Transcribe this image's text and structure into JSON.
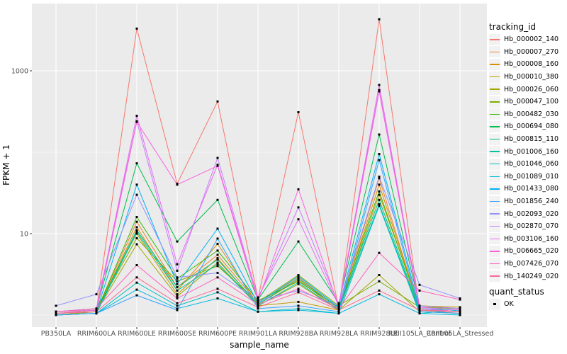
{
  "chart": {
    "x_axis_title": "sample_name",
    "y_axis_title": "FPKM + 1"
  },
  "legend": {
    "tracking_title": "tracking_id",
    "quant_title": "quant_status",
    "quant_ok_label": "OK"
  },
  "chart_data": {
    "type": "line",
    "title": "",
    "xlabel": "sample_name",
    "ylabel": "FPKM + 1",
    "y_scale": "log10",
    "legend_position": "right",
    "grid": true,
    "panel_bg": "#EBEBEB",
    "grid_color": "#FFFFFF",
    "point_color": "#000000",
    "axis_text_color": "#4D4D4D",
    "tick_color": "#333333",
    "ylim": [
      0.7,
      6500
    ],
    "y_ticks": [
      {
        "label": "10",
        "value": 10
      },
      {
        "label": "1000",
        "value": 1000
      }
    ],
    "y_minor": [
      1,
      100
    ],
    "categories": [
      "PB350LA",
      "RRIM600LA",
      "RRIM600LE",
      "RRIM600SE",
      "RRIM600PE",
      "RRIM901LA",
      "RRIM928BA",
      "RRIM928LA",
      "RRIM928LE",
      "RRII105LA_Control",
      "RRII105LA_Stressed"
    ],
    "quant_status": "OK",
    "series": [
      {
        "name": "Hb_000002_140",
        "color": "#F8766D",
        "values": [
          1.05,
          1.15,
          3300,
          41,
          420,
          1.6,
          310,
          1.2,
          4300,
          1.15,
          1.05
        ]
      },
      {
        "name": "Hb_000007_270",
        "color": "#EA8331",
        "values": [
          1.05,
          1.1,
          14,
          2.2,
          5.5,
          1.4,
          2.9,
          1.2,
          48,
          1.15,
          1.1
        ]
      },
      {
        "name": "Hb_000008_160",
        "color": "#D89000",
        "values": [
          1.0,
          1.1,
          12,
          2.0,
          7.5,
          1.35,
          2.7,
          1.15,
          40,
          1.2,
          1.1
        ]
      },
      {
        "name": "Hb_000010_380",
        "color": "#C09B00",
        "values": [
          1.1,
          1.2,
          10,
          1.8,
          5.0,
          1.3,
          1.45,
          1.15,
          30,
          1.3,
          1.25
        ]
      },
      {
        "name": "Hb_000026_060",
        "color": "#A3A500",
        "values": [
          1.0,
          1.1,
          7.4,
          1.7,
          4.4,
          1.3,
          2.4,
          1.15,
          3.1,
          1.1,
          1.05
        ]
      },
      {
        "name": "Hb_000047_100",
        "color": "#7CAE00",
        "values": [
          1.1,
          1.15,
          8.8,
          2.6,
          4.0,
          1.45,
          3.1,
          1.3,
          2.6,
          1.25,
          1.2
        ]
      },
      {
        "name": "Hb_000482_030",
        "color": "#39B600",
        "values": [
          1.05,
          1.1,
          16,
          2.8,
          6.2,
          1.5,
          2.6,
          1.25,
          33,
          1.2,
          1.1
        ]
      },
      {
        "name": "Hb_000694_080",
        "color": "#00BB4E",
        "values": [
          1.1,
          1.2,
          73,
          8,
          26,
          1.55,
          8,
          1.4,
          165,
          1.3,
          1.2
        ]
      },
      {
        "name": "Hb_000815_110",
        "color": "#00BF7D",
        "values": [
          1.05,
          1.1,
          11,
          2.2,
          4.8,
          1.35,
          2.8,
          1.2,
          26,
          1.15,
          1.1
        ]
      },
      {
        "name": "Hb_001006_160",
        "color": "#00C1A3",
        "values": [
          1.0,
          1.05,
          10.5,
          2.0,
          4.2,
          1.3,
          2.5,
          1.15,
          23,
          1.1,
          1.05
        ]
      },
      {
        "name": "Hb_001046_060",
        "color": "#00C0C4",
        "values": [
          1.0,
          1.05,
          2.5,
          1.3,
          1.9,
          1.1,
          1.2,
          1.05,
          22,
          1.05,
          1.15
        ]
      },
      {
        "name": "Hb_001089_010",
        "color": "#00BAE0",
        "values": [
          1.0,
          1.05,
          2.05,
          1.2,
          1.6,
          1.1,
          1.15,
          1.05,
          1.8,
          1.05,
          1.0
        ]
      },
      {
        "name": "Hb_001433_080",
        "color": "#00B0F6",
        "values": [
          1.05,
          1.1,
          40,
          2.4,
          11.5,
          1.4,
          3.0,
          1.25,
          95,
          1.2,
          1.15
        ]
      },
      {
        "name": "Hb_001856_240",
        "color": "#35A2FF",
        "values": [
          1.0,
          1.05,
          1.75,
          1.15,
          8.7,
          1.2,
          1.3,
          1.1,
          80,
          1.1,
          1.05
        ]
      },
      {
        "name": "Hb_002093_020",
        "color": "#9590FF",
        "values": [
          1.3,
          1.8,
          30,
          2.9,
          3.3,
          1.5,
          2.0,
          1.3,
          50,
          2.35,
          1.6
        ]
      },
      {
        "name": "Hb_002870_070",
        "color": "#C77CFF",
        "values": [
          1.1,
          1.2,
          240,
          3.5,
          85,
          1.6,
          21,
          1.35,
          580,
          1.3,
          1.2
        ]
      },
      {
        "name": "Hb_003106_160",
        "color": "#E76BF3",
        "values": [
          1.1,
          1.15,
          280,
          4.2,
          70,
          1.65,
          15,
          1.3,
          670,
          1.25,
          1.15
        ]
      },
      {
        "name": "Hb_006665_020",
        "color": "#FA62DB",
        "values": [
          1.05,
          1.1,
          235,
          40,
          68,
          1.5,
          35,
          1.25,
          560,
          1.2,
          1.1
        ]
      },
      {
        "name": "Hb_007426_070",
        "color": "#FF62BC",
        "values": [
          1.1,
          1.2,
          4.1,
          1.6,
          2.9,
          1.35,
          2.1,
          1.2,
          5.8,
          2.0,
          1.55
        ]
      },
      {
        "name": "Hb_140249_020",
        "color": "#FF6A98",
        "values": [
          1.05,
          1.1,
          2.9,
          1.4,
          2.1,
          1.25,
          1.9,
          1.15,
          2.0,
          1.15,
          1.1
        ]
      }
    ]
  }
}
